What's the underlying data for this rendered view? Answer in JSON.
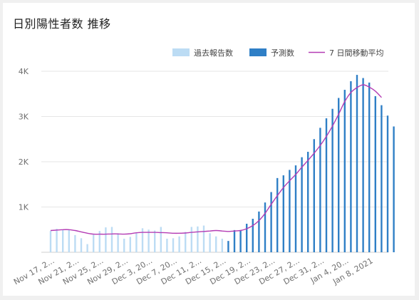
{
  "title": "日別陽性者数 推移",
  "legend": {
    "past": "過去報告数",
    "forecast": "予測数",
    "ma": "7 日間移動平均"
  },
  "colors": {
    "past": "#bcdcf4",
    "forecast": "#2f7fc6",
    "ma": "#b43cb4",
    "grid": "#e6e6e6"
  },
  "chart_data": {
    "type": "bar",
    "title": "日別陽性者数 推移",
    "ylim": [
      0,
      4000
    ],
    "y_ticks": [
      {
        "value": 1000,
        "label": "1K"
      },
      {
        "value": 2000,
        "label": "2K"
      },
      {
        "value": 3000,
        "label": "3K"
      },
      {
        "value": 4000,
        "label": "4K"
      }
    ],
    "x_tick_labels": [
      {
        "index": 0,
        "label": "Nov 17, 2..."
      },
      {
        "index": 4,
        "label": "Nov 21, 2..."
      },
      {
        "index": 8,
        "label": "Nov 25, 2..."
      },
      {
        "index": 12,
        "label": "Nov 29, 2..."
      },
      {
        "index": 16,
        "label": "Dec 3, 20..."
      },
      {
        "index": 20,
        "label": "Dec 7, 20..."
      },
      {
        "index": 24,
        "label": "Dec 11, 2..."
      },
      {
        "index": 28,
        "label": "Dec 15, 2..."
      },
      {
        "index": 32,
        "label": "Dec 19, 2..."
      },
      {
        "index": 36,
        "label": "Dec 23, 2..."
      },
      {
        "index": 40,
        "label": "Dec 27, 2..."
      },
      {
        "index": 44,
        "label": "Dec 31, 2..."
      },
      {
        "index": 48,
        "label": "Jan 4, 20..."
      },
      {
        "index": 52,
        "label": "Jan 8, 2021"
      }
    ],
    "legend_position": "top-right",
    "grid": true,
    "series": [
      {
        "name": "過去報告数",
        "type": "bar",
        "values": [
          470,
          520,
          500,
          490,
          380,
          310,
          180,
          390,
          470,
          550,
          560,
          420,
          300,
          340,
          420,
          530,
          500,
          480,
          560,
          300,
          310,
          350,
          450,
          560,
          570,
          590,
          420,
          350,
          300
        ]
      },
      {
        "name": "予測数",
        "type": "bar",
        "start_index": 29,
        "values": [
          250,
          490,
          490,
          630,
          740,
          900,
          1100,
          1330,
          1640,
          1700,
          1820,
          1920,
          2100,
          2220,
          2500,
          2750,
          2960,
          3170,
          3410,
          3590,
          3780,
          3920,
          3850,
          3750,
          3450,
          3250,
          3020,
          2780
        ]
      },
      {
        "name": "7 日間移動平均",
        "type": "line",
        "values": [
          480,
          490,
          500,
          500,
          480,
          450,
          420,
          400,
          400,
          400,
          405,
          405,
          400,
          410,
          430,
          440,
          440,
          440,
          435,
          430,
          420,
          420,
          425,
          440,
          450,
          460,
          470,
          480,
          470,
          460,
          470,
          480,
          520,
          590,
          700,
          860,
          1060,
          1250,
          1430,
          1580,
          1720,
          1880,
          2030,
          2190,
          2360,
          2560,
          2790,
          3050,
          3330,
          3530,
          3640,
          3700,
          3650,
          3560,
          3420
        ]
      }
    ]
  }
}
